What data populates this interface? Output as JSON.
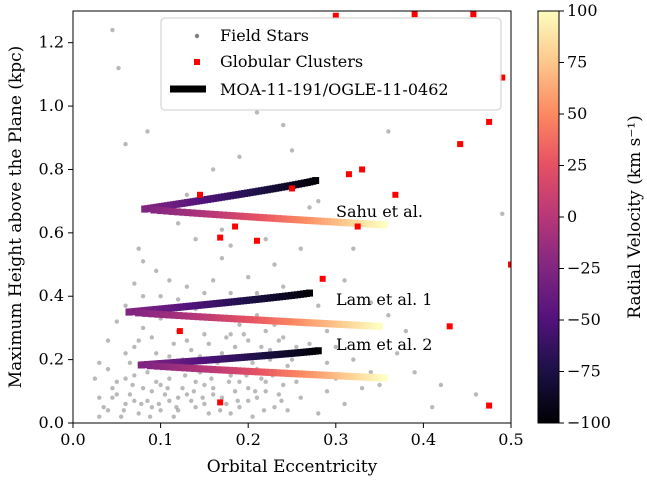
{
  "chart_data": {
    "type": "scatter",
    "xlabel": "Orbital Eccentricity",
    "ylabel": "Maximum Height above the Plane (kpc)",
    "xlim": [
      0.0,
      0.5
    ],
    "ylim": [
      0.0,
      1.3
    ],
    "xticks": [
      "0.0",
      "0.1",
      "0.2",
      "0.3",
      "0.4",
      "0.5"
    ],
    "yticks": [
      "0.0",
      "0.2",
      "0.4",
      "0.6",
      "0.8",
      "1.0",
      "1.2"
    ],
    "grid": false,
    "legend_position": "top-center",
    "colorbar": {
      "label": "Radial Velocity (km s⁻¹)",
      "range": [
        -100,
        100
      ],
      "ticks": [
        "−100",
        "−75",
        "−50",
        "−25",
        "0",
        "25",
        "50",
        "75",
        "100"
      ],
      "colormap": "magma"
    },
    "series": [
      {
        "name": "Field Stars",
        "color": "#808080",
        "marker": "circle",
        "points": [
          [
            0.045,
            1.24
          ],
          [
            0.052,
            1.12
          ],
          [
            0.11,
            1.04
          ],
          [
            0.085,
            0.92
          ],
          [
            0.06,
            0.88
          ],
          [
            0.21,
            0.98
          ],
          [
            0.24,
            0.94
          ],
          [
            0.19,
            0.84
          ],
          [
            0.16,
            0.8
          ],
          [
            0.22,
            0.74
          ],
          [
            0.13,
            0.72
          ],
          [
            0.12,
            0.63
          ],
          [
            0.28,
            0.7
          ],
          [
            0.25,
            0.86
          ],
          [
            0.14,
            0.58
          ],
          [
            0.075,
            0.55
          ],
          [
            0.095,
            0.48
          ],
          [
            0.17,
            0.52
          ],
          [
            0.2,
            0.46
          ],
          [
            0.23,
            0.5
          ],
          [
            0.32,
            0.55
          ],
          [
            0.31,
            0.45
          ],
          [
            0.34,
            0.38
          ],
          [
            0.36,
            0.34
          ],
          [
            0.38,
            0.29
          ],
          [
            0.37,
            0.22
          ],
          [
            0.39,
            0.16
          ],
          [
            0.42,
            0.12
          ],
          [
            0.46,
            0.09
          ],
          [
            0.41,
            0.05
          ],
          [
            0.49,
            0.66
          ],
          [
            0.36,
            0.92
          ],
          [
            0.27,
            0.68
          ],
          [
            0.15,
            0.66
          ],
          [
            0.08,
            0.4
          ],
          [
            0.05,
            0.32
          ],
          [
            0.04,
            0.26
          ],
          [
            0.06,
            0.22
          ],
          [
            0.03,
            0.19
          ],
          [
            0.025,
            0.14
          ],
          [
            0.03,
            0.08
          ],
          [
            0.045,
            0.11
          ],
          [
            0.06,
            0.06
          ],
          [
            0.07,
            0.15
          ],
          [
            0.09,
            0.1
          ],
          [
            0.1,
            0.04
          ],
          [
            0.11,
            0.14
          ],
          [
            0.12,
            0.08
          ],
          [
            0.13,
            0.18
          ],
          [
            0.14,
            0.05
          ],
          [
            0.15,
            0.12
          ],
          [
            0.16,
            0.09
          ],
          [
            0.17,
            0.22
          ],
          [
            0.18,
            0.03
          ],
          [
            0.19,
            0.13
          ],
          [
            0.2,
            0.07
          ],
          [
            0.21,
            0.17
          ],
          [
            0.22,
            0.1
          ],
          [
            0.23,
            0.05
          ],
          [
            0.24,
            0.12
          ],
          [
            0.25,
            0.2
          ],
          [
            0.26,
            0.08
          ],
          [
            0.27,
            0.15
          ],
          [
            0.28,
            0.03
          ],
          [
            0.29,
            0.1
          ],
          [
            0.3,
            0.14
          ],
          [
            0.31,
            0.06
          ],
          [
            0.33,
            0.11
          ],
          [
            0.035,
            0.05
          ],
          [
            0.055,
            0.02
          ],
          [
            0.065,
            0.09
          ],
          [
            0.075,
            0.03
          ],
          [
            0.085,
            0.07
          ],
          [
            0.095,
            0.13
          ],
          [
            0.105,
            0.09
          ],
          [
            0.115,
            0.02
          ],
          [
            0.125,
            0.11
          ],
          [
            0.135,
            0.07
          ],
          [
            0.145,
            0.16
          ],
          [
            0.155,
            0.03
          ],
          [
            0.165,
            0.19
          ],
          [
            0.175,
            0.06
          ],
          [
            0.185,
            0.1
          ],
          [
            0.195,
            0.21
          ],
          [
            0.205,
            0.02
          ],
          [
            0.215,
            0.14
          ],
          [
            0.225,
            0.23
          ],
          [
            0.235,
            0.09
          ],
          [
            0.245,
            0.04
          ],
          [
            0.255,
            0.13
          ],
          [
            0.04,
            0.17
          ],
          [
            0.05,
            0.13
          ],
          [
            0.07,
            0.24
          ],
          [
            0.08,
            0.3
          ],
          [
            0.09,
            0.27
          ],
          [
            0.1,
            0.33
          ],
          [
            0.11,
            0.21
          ],
          [
            0.12,
            0.29
          ],
          [
            0.13,
            0.26
          ],
          [
            0.14,
            0.36
          ],
          [
            0.15,
            0.28
          ],
          [
            0.16,
            0.33
          ],
          [
            0.18,
            0.28
          ],
          [
            0.19,
            0.31
          ],
          [
            0.2,
            0.26
          ],
          [
            0.21,
            0.34
          ],
          [
            0.22,
            0.29
          ],
          [
            0.23,
            0.31
          ],
          [
            0.24,
            0.27
          ],
          [
            0.26,
            0.32
          ],
          [
            0.27,
            0.25
          ],
          [
            0.28,
            0.37
          ],
          [
            0.29,
            0.29
          ],
          [
            0.06,
            0.37
          ],
          [
            0.07,
            0.44
          ],
          [
            0.1,
            0.4
          ],
          [
            0.11,
            0.45
          ],
          [
            0.12,
            0.39
          ],
          [
            0.13,
            0.43
          ],
          [
            0.15,
            0.41
          ],
          [
            0.16,
            0.45
          ],
          [
            0.18,
            0.41
          ],
          [
            0.19,
            0.39
          ],
          [
            0.21,
            0.41
          ],
          [
            0.24,
            0.43
          ],
          [
            0.08,
            0.51
          ],
          [
            0.18,
            0.56
          ],
          [
            0.22,
            0.58
          ],
          [
            0.26,
            0.55
          ],
          [
            0.17,
            0.61
          ],
          [
            0.045,
            0.08
          ],
          [
            0.058,
            0.04
          ],
          [
            0.068,
            0.12
          ],
          [
            0.078,
            0.06
          ],
          [
            0.088,
            0.02
          ],
          [
            0.098,
            0.06
          ],
          [
            0.108,
            0.11
          ],
          [
            0.118,
            0.05
          ],
          [
            0.128,
            0.15
          ],
          [
            0.138,
            0.1
          ],
          [
            0.148,
            0.08
          ],
          [
            0.158,
            0.14
          ],
          [
            0.168,
            0.04
          ],
          [
            0.178,
            0.13
          ],
          [
            0.188,
            0.07
          ],
          [
            0.198,
            0.15
          ],
          [
            0.208,
            0.1
          ],
          [
            0.218,
            0.04
          ],
          [
            0.228,
            0.15
          ],
          [
            0.238,
            0.07
          ],
          [
            0.03,
            0.02
          ],
          [
            0.04,
            0.04
          ],
          [
            0.05,
            0.09
          ],
          [
            0.06,
            0.14
          ],
          [
            0.07,
            0.07
          ],
          [
            0.08,
            0.11
          ],
          [
            0.09,
            0.05
          ],
          [
            0.1,
            0.12
          ],
          [
            0.11,
            0.07
          ],
          [
            0.12,
            0.04
          ],
          [
            0.13,
            0.09
          ],
          [
            0.14,
            0.13
          ],
          [
            0.15,
            0.06
          ],
          [
            0.16,
            0.11
          ],
          [
            0.17,
            0.08
          ],
          [
            0.18,
            0.15
          ],
          [
            0.19,
            0.05
          ],
          [
            0.2,
            0.11
          ],
          [
            0.21,
            0.08
          ],
          [
            0.22,
            0.13
          ],
          [
            0.065,
            0.19
          ],
          [
            0.085,
            0.16
          ],
          [
            0.105,
            0.18
          ],
          [
            0.125,
            0.2
          ],
          [
            0.145,
            0.21
          ],
          [
            0.165,
            0.17
          ],
          [
            0.185,
            0.24
          ],
          [
            0.205,
            0.19
          ],
          [
            0.225,
            0.2
          ],
          [
            0.245,
            0.18
          ],
          [
            0.075,
            0.26
          ],
          [
            0.095,
            0.22
          ],
          [
            0.115,
            0.25
          ],
          [
            0.135,
            0.23
          ],
          [
            0.155,
            0.25
          ],
          [
            0.175,
            0.27
          ],
          [
            0.195,
            0.28
          ],
          [
            0.215,
            0.24
          ],
          [
            0.235,
            0.26
          ],
          [
            0.255,
            0.24
          ],
          [
            0.32,
            0.2
          ],
          [
            0.34,
            0.16
          ],
          [
            0.35,
            0.12
          ],
          [
            0.3,
            0.24
          ],
          [
            0.29,
            0.19
          ]
        ]
      },
      {
        "name": "Globular Clusters",
        "color": "#ff0000",
        "marker": "square",
        "points": [
          [
            0.3,
            1.285
          ],
          [
            0.39,
            1.29
          ],
          [
            0.457,
            1.29
          ],
          [
            0.49,
            1.09
          ],
          [
            0.475,
            0.95
          ],
          [
            0.442,
            0.88
          ],
          [
            0.33,
            0.8
          ],
          [
            0.315,
            0.785
          ],
          [
            0.368,
            0.72
          ],
          [
            0.145,
            0.72
          ],
          [
            0.25,
            0.74
          ],
          [
            0.325,
            0.62
          ],
          [
            0.185,
            0.62
          ],
          [
            0.168,
            0.585
          ],
          [
            0.21,
            0.575
          ],
          [
            0.285,
            0.455
          ],
          [
            0.5,
            0.5
          ],
          [
            0.43,
            0.305
          ],
          [
            0.122,
            0.29
          ],
          [
            0.168,
            0.065
          ],
          [
            0.475,
            0.055
          ]
        ]
      }
    ],
    "tracks": [
      {
        "name": "MOA-11-191/OGLE-11-0462",
        "annotation": "Sahu et al.",
        "e_min": 0.082,
        "y_at_vertex": 0.675,
        "upper_end": [
          0.277,
          0.765
        ],
        "lower_end": [
          0.355,
          0.625
        ]
      },
      {
        "name": "MOA-11-191/OGLE-11-0462",
        "annotation": "Lam et al. 1",
        "e_min": 0.064,
        "y_at_vertex": 0.35,
        "upper_end": [
          0.27,
          0.41
        ],
        "lower_end": [
          0.35,
          0.305
        ]
      },
      {
        "name": "MOA-11-191/OGLE-11-0462",
        "annotation": "Lam et al. 2",
        "e_min": 0.078,
        "y_at_vertex": 0.183,
        "upper_end": [
          0.28,
          0.228
        ],
        "lower_end": [
          0.355,
          0.142
        ]
      }
    ],
    "legend": [
      {
        "label": "Field Stars",
        "marker": "dot",
        "color": "#808080"
      },
      {
        "label": "Globular Clusters",
        "marker": "square",
        "color": "#ff0000"
      },
      {
        "label": "MOA-11-191/OGLE-11-0462",
        "marker": "thick-line",
        "color": "#000000"
      }
    ]
  }
}
